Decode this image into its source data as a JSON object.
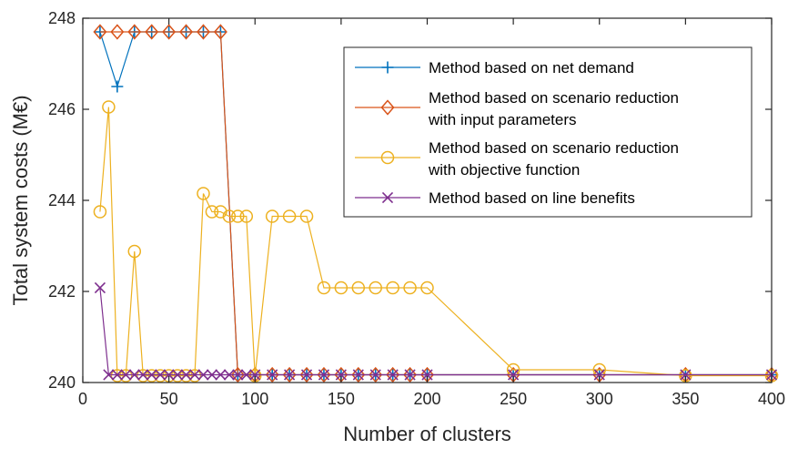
{
  "chart_data": {
    "type": "line",
    "xlabel": "Number of clusters",
    "ylabel": "Total system costs (M€)",
    "xlim": [
      0,
      400
    ],
    "ylim": [
      240,
      248
    ],
    "xticks": [
      0,
      50,
      100,
      150,
      200,
      250,
      300,
      350,
      400
    ],
    "yticks": [
      240,
      242,
      244,
      246,
      248
    ],
    "grid": false,
    "legend_position": "top-right",
    "series": [
      {
        "name": "Method based on net demand",
        "color": "#0072BD",
        "marker": "plus",
        "x": [
          10,
          20,
          30,
          40,
          50,
          60,
          70,
          80,
          90,
          100,
          110,
          120,
          130,
          140,
          150,
          160,
          170,
          180,
          190,
          200,
          250,
          300,
          350,
          400
        ],
        "y": [
          247.7,
          246.5,
          247.7,
          247.7,
          247.7,
          247.7,
          247.7,
          247.7,
          240.17,
          240.17,
          240.17,
          240.17,
          240.17,
          240.17,
          240.17,
          240.17,
          240.17,
          240.17,
          240.17,
          240.17,
          240.17,
          240.17,
          240.17,
          240.17
        ]
      },
      {
        "name": "Method based on scenario reduction with input parameters",
        "legend_lines": [
          "Method based on scenario reduction",
          "with input parameters"
        ],
        "color": "#D95319",
        "marker": "diamond",
        "x": [
          10,
          20,
          30,
          40,
          50,
          60,
          70,
          80,
          90,
          100,
          110,
          120,
          130,
          140,
          150,
          160,
          170,
          180,
          190,
          200,
          250,
          300,
          350,
          400
        ],
        "y": [
          247.7,
          247.7,
          247.7,
          247.7,
          247.7,
          247.7,
          247.7,
          247.7,
          240.17,
          240.17,
          240.17,
          240.17,
          240.17,
          240.17,
          240.17,
          240.17,
          240.17,
          240.17,
          240.17,
          240.17,
          240.17,
          240.17,
          240.17,
          240.17
        ]
      },
      {
        "name": "Method based on scenario reduction with objective function",
        "legend_lines": [
          "Method based on scenario reduction",
          "with objective function"
        ],
        "color": "#EDB120",
        "marker": "circle",
        "x": [
          10,
          15,
          20,
          25,
          30,
          35,
          40,
          45,
          50,
          55,
          60,
          65,
          70,
          75,
          80,
          85,
          90,
          95,
          100,
          110,
          120,
          130,
          140,
          150,
          160,
          170,
          180,
          190,
          200,
          250,
          300,
          350,
          400
        ],
        "y": [
          243.75,
          246.05,
          240.15,
          240.15,
          242.88,
          240.15,
          240.15,
          240.15,
          240.15,
          240.15,
          240.15,
          240.15,
          244.15,
          243.75,
          243.75,
          243.65,
          243.65,
          243.65,
          240.15,
          243.65,
          243.65,
          243.65,
          242.08,
          242.08,
          242.08,
          242.08,
          242.08,
          242.08,
          242.08,
          240.28,
          240.28,
          240.15,
          240.15
        ]
      },
      {
        "name": "Method based on line benefits",
        "color": "#7E2F8E",
        "marker": "x",
        "x": [
          10,
          15,
          20,
          25,
          30,
          35,
          40,
          45,
          50,
          55,
          60,
          65,
          70,
          75,
          80,
          85,
          90,
          95,
          100,
          110,
          120,
          130,
          140,
          150,
          160,
          170,
          180,
          190,
          200,
          250,
          300,
          350,
          400
        ],
        "y": [
          242.08,
          240.17,
          240.17,
          240.17,
          240.17,
          240.17,
          240.17,
          240.17,
          240.17,
          240.17,
          240.17,
          240.17,
          240.17,
          240.17,
          240.17,
          240.17,
          240.17,
          240.17,
          240.17,
          240.17,
          240.17,
          240.17,
          240.17,
          240.17,
          240.17,
          240.17,
          240.17,
          240.17,
          240.17,
          240.17,
          240.17,
          240.17,
          240.17
        ]
      }
    ]
  }
}
